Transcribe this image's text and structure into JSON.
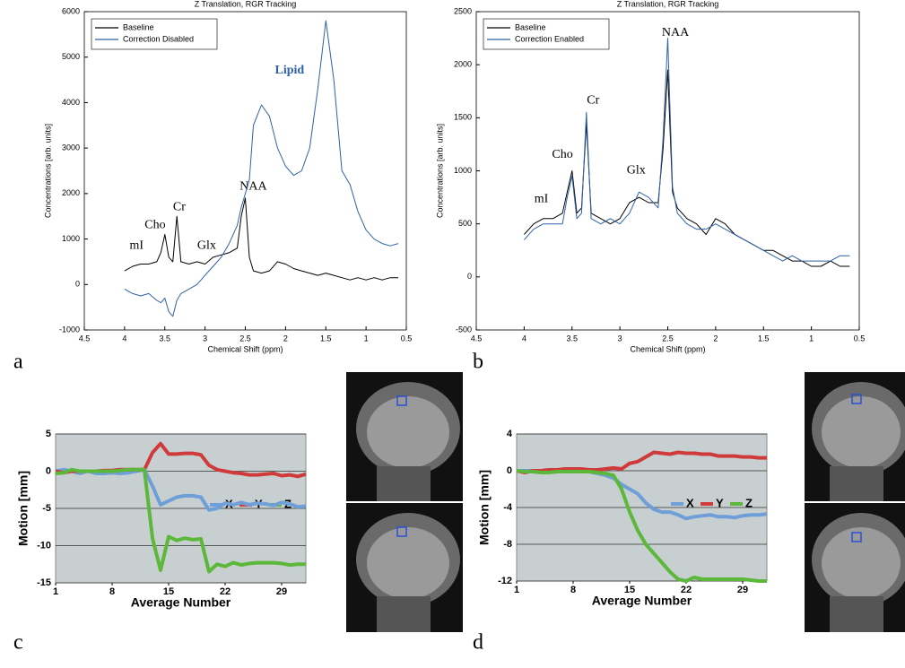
{
  "chart_data": [
    {
      "type": "line",
      "panel": "a",
      "title": "Z Translation, RGR Tracking",
      "xlabel": "Chemical Shift (ppm)",
      "ylabel": "Concentrations [arb. units]",
      "x": [
        4.0,
        3.9,
        3.8,
        3.7,
        3.6,
        3.55,
        3.5,
        3.45,
        3.4,
        3.35,
        3.3,
        3.2,
        3.1,
        3.0,
        2.9,
        2.8,
        2.7,
        2.6,
        2.55,
        2.5,
        2.45,
        2.4,
        2.3,
        2.2,
        2.1,
        2.0,
        1.9,
        1.8,
        1.7,
        1.6,
        1.5,
        1.4,
        1.3,
        1.2,
        1.1,
        1.0,
        0.9,
        0.8,
        0.7,
        0.6
      ],
      "series": [
        {
          "name": "Baseline",
          "color": "#000000",
          "values": [
            300,
            400,
            450,
            450,
            500,
            700,
            1100,
            600,
            500,
            1500,
            500,
            450,
            500,
            450,
            600,
            650,
            700,
            800,
            1500,
            1900,
            600,
            300,
            250,
            300,
            500,
            450,
            350,
            300,
            250,
            200,
            250,
            200,
            150,
            100,
            150,
            100,
            150,
            100,
            150,
            150
          ]
        },
        {
          "name": "Correction Disabled",
          "color": "#2e62a8",
          "values": [
            -100,
            -200,
            -250,
            -200,
            -350,
            -400,
            -300,
            -600,
            -700,
            -350,
            -200,
            -100,
            0,
            200,
            400,
            600,
            900,
            1300,
            1700,
            2000,
            2300,
            3500,
            3950,
            3700,
            3000,
            2600,
            2400,
            2500,
            3000,
            4300,
            5800,
            4500,
            2500,
            2200,
            1600,
            1200,
            1000,
            900,
            850,
            900
          ]
        }
      ],
      "xlim": [
        4.5,
        0.5
      ],
      "xticks": [
        4.5,
        4,
        3.5,
        3,
        2.5,
        2,
        1.5,
        1,
        0.5
      ],
      "ylim": [
        -1000,
        6000
      ],
      "yticks": [
        -1000,
        0,
        1000,
        2000,
        3000,
        4000,
        5000,
        6000
      ],
      "grid": false,
      "legend": "upper left",
      "annotations": [
        {
          "text": "mI"
        },
        {
          "text": "Cho"
        },
        {
          "text": "Cr"
        },
        {
          "text": "Glx"
        },
        {
          "text": "NAA"
        },
        {
          "text": "Lipid",
          "color": "#2e62a8"
        }
      ]
    },
    {
      "type": "line",
      "panel": "b",
      "title": "Z Translation, RGR Tracking",
      "xlabel": "Chemical Shift (ppm)",
      "ylabel": "Concentrations [arb. units]",
      "x": [
        4.0,
        3.9,
        3.8,
        3.7,
        3.6,
        3.55,
        3.5,
        3.45,
        3.4,
        3.35,
        3.3,
        3.2,
        3.1,
        3.0,
        2.9,
        2.8,
        2.7,
        2.6,
        2.55,
        2.5,
        2.45,
        2.4,
        2.3,
        2.2,
        2.1,
        2.0,
        1.9,
        1.8,
        1.7,
        1.6,
        1.5,
        1.4,
        1.3,
        1.2,
        1.1,
        1.0,
        0.9,
        0.8,
        0.7,
        0.6
      ],
      "series": [
        {
          "name": "Baseline",
          "color": "#000000",
          "values": [
            400,
            500,
            550,
            550,
            600,
            800,
            1000,
            600,
            650,
            1450,
            600,
            550,
            500,
            550,
            700,
            750,
            700,
            700,
            1200,
            1950,
            800,
            650,
            550,
            500,
            400,
            550,
            500,
            400,
            350,
            300,
            250,
            250,
            200,
            150,
            150,
            100,
            100,
            150,
            100,
            100
          ]
        },
        {
          "name": "Correction Enabled",
          "color": "#2e62a8",
          "values": [
            350,
            450,
            500,
            500,
            500,
            750,
            950,
            550,
            600,
            1550,
            550,
            500,
            550,
            500,
            600,
            800,
            750,
            650,
            1300,
            2250,
            850,
            600,
            500,
            450,
            450,
            500,
            450,
            400,
            350,
            300,
            250,
            200,
            150,
            200,
            150,
            150,
            150,
            150,
            200,
            200
          ]
        }
      ],
      "xlim": [
        4.5,
        0.5
      ],
      "xticks": [
        4.5,
        4,
        3.5,
        3,
        2.5,
        2,
        1.5,
        1,
        0.5
      ],
      "ylim": [
        -500,
        2500
      ],
      "yticks": [
        -500,
        0,
        500,
        1000,
        1500,
        2000,
        2500
      ],
      "grid": false,
      "legend": "upper left",
      "annotations": [
        {
          "text": "mI"
        },
        {
          "text": "Cho"
        },
        {
          "text": "Cr"
        },
        {
          "text": "Glx"
        },
        {
          "text": "NAA"
        }
      ]
    },
    {
      "type": "line",
      "panel": "c",
      "xlabel": "Average Number",
      "ylabel": "Motion [mm]",
      "x": [
        1,
        2,
        3,
        4,
        5,
        6,
        7,
        8,
        9,
        10,
        11,
        12,
        13,
        14,
        15,
        16,
        17,
        18,
        19,
        20,
        21,
        22,
        23,
        24,
        25,
        26,
        27,
        28,
        29,
        30,
        31,
        32
      ],
      "series": [
        {
          "name": "X",
          "color": "#6f9fd8",
          "values": [
            0,
            0.2,
            0,
            -0.3,
            0,
            -0.3,
            -0.3,
            -0.2,
            -0.3,
            -0.2,
            0,
            0.2,
            -2,
            -4.5,
            -4,
            -3.5,
            -3.3,
            -3.3,
            -3.5,
            -5.2,
            -5,
            -4.3,
            -4.5,
            -4.2,
            -4.5,
            -4.3,
            -4.4,
            -4.6,
            -4.2,
            -4.4,
            -4.8,
            -4.7
          ]
        },
        {
          "name": "Y",
          "color": "#d03a3a",
          "values": [
            0,
            -0.2,
            0,
            0,
            0,
            0,
            0.1,
            0.1,
            0.2,
            0.2,
            0.2,
            0.2,
            2.5,
            3.7,
            2.3,
            2.3,
            2.4,
            2.4,
            2.2,
            0.8,
            0.2,
            0,
            -0.2,
            -0.3,
            -0.5,
            -0.5,
            -0.4,
            -0.3,
            -0.6,
            -0.5,
            -0.7,
            -0.4
          ]
        },
        {
          "name": "Z",
          "color": "#5cb83a",
          "values": [
            -0.3,
            -0.2,
            0.2,
            0,
            0,
            0,
            0,
            0,
            0.1,
            0.2,
            0.2,
            0.2,
            -9,
            -13.3,
            -8.8,
            -9.3,
            -9,
            -9.2,
            -9.1,
            -13.5,
            -12.5,
            -12.8,
            -12.3,
            -12.6,
            -12.4,
            -12.3,
            -12.3,
            -12.3,
            -12.4,
            -12.6,
            -12.5,
            -12.5
          ]
        }
      ],
      "xlim": [
        1,
        32
      ],
      "xticks": [
        1,
        8,
        15,
        22,
        29
      ],
      "ylim": [
        -15,
        5
      ],
      "yticks": [
        -15,
        -10,
        -5,
        0,
        5
      ],
      "grid": true,
      "plot_background": "#c8cfd0",
      "legend": "center right"
    },
    {
      "type": "line",
      "panel": "d",
      "xlabel": "Average Number",
      "ylabel": "Motion [mm]",
      "x": [
        1,
        2,
        3,
        4,
        5,
        6,
        7,
        8,
        9,
        10,
        11,
        12,
        13,
        14,
        15,
        16,
        17,
        18,
        19,
        20,
        21,
        22,
        23,
        24,
        25,
        26,
        27,
        28,
        29,
        30,
        31,
        32
      ],
      "series": [
        {
          "name": "X",
          "color": "#6f9fd8",
          "values": [
            0,
            0,
            0,
            0,
            0,
            0.1,
            0.1,
            0.2,
            0,
            -0.1,
            -0.3,
            -0.5,
            -0.8,
            -1.5,
            -2,
            -2.5,
            -3.5,
            -4.2,
            -4.5,
            -4.5,
            -4.8,
            -5.2,
            -5,
            -4.9,
            -4.8,
            -5,
            -5,
            -5.1,
            -4.9,
            -4.8,
            -4.8,
            -4.7
          ]
        },
        {
          "name": "Y",
          "color": "#d03a3a",
          "values": [
            0,
            -0.2,
            0,
            0,
            0.1,
            0.1,
            0.2,
            0.2,
            0.2,
            0.1,
            0.1,
            0.2,
            0.3,
            0.2,
            0.8,
            1.0,
            1.5,
            2.0,
            1.9,
            1.8,
            2.0,
            1.9,
            1.9,
            1.8,
            1.8,
            1.6,
            1.6,
            1.6,
            1.5,
            1.5,
            1.4,
            1.4
          ]
        },
        {
          "name": "Z",
          "color": "#5cb83a",
          "values": [
            0,
            -0.1,
            -0.1,
            -0.2,
            -0.2,
            -0.1,
            -0.1,
            -0.1,
            -0.1,
            -0.1,
            -0.2,
            -0.3,
            -0.5,
            -2,
            -4.5,
            -6.5,
            -8,
            -9,
            -10,
            -11,
            -11.8,
            -12,
            -11.6,
            -11.8,
            -11.8,
            -11.8,
            -11.8,
            -11.8,
            -11.8,
            -11.9,
            -12,
            -12
          ]
        }
      ],
      "xlim": [
        1,
        32
      ],
      "xticks": [
        1,
        8,
        15,
        22,
        29
      ],
      "ylim": [
        -12,
        4
      ],
      "yticks": [
        -12,
        -8,
        -4,
        0,
        4
      ],
      "grid": true,
      "plot_background": "#c8cfd0",
      "legend": "center right"
    }
  ]
}
